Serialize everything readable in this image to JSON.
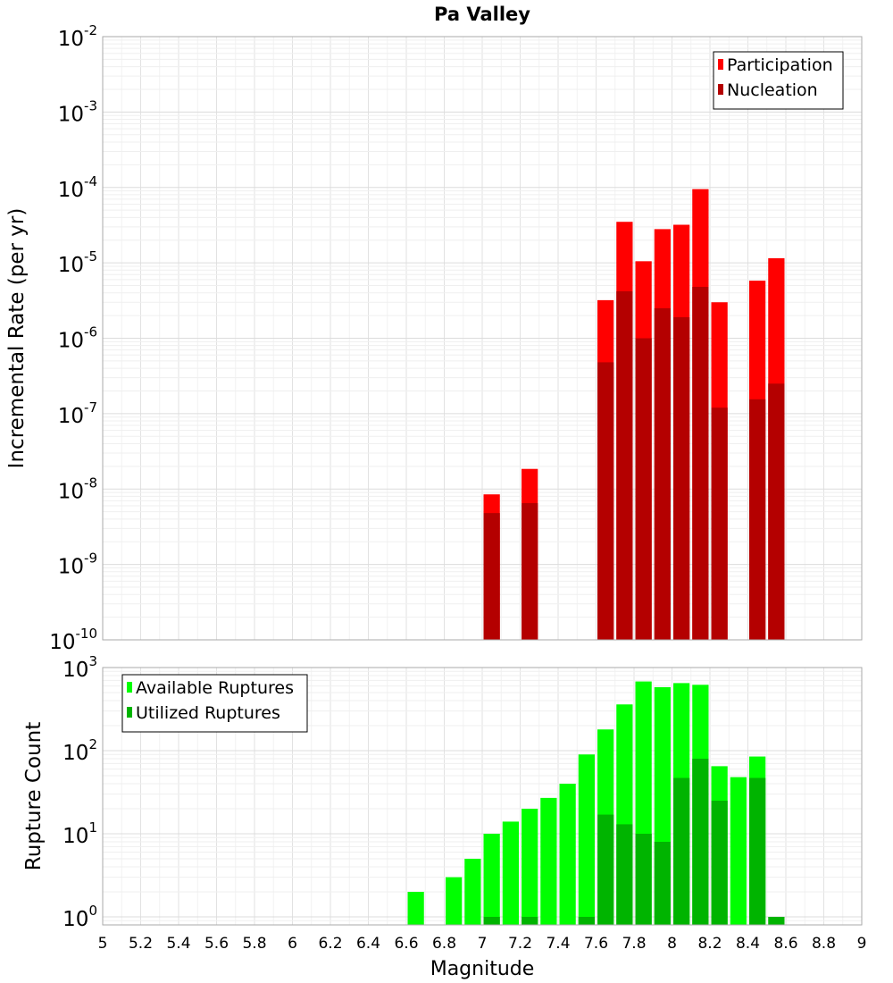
{
  "chart_data": [
    {
      "type": "bar",
      "title": "Pa Valley",
      "xlabel": "",
      "ylabel": "Incremental Rate (per yr)",
      "yscale": "log",
      "ylim": [
        1e-10,
        0.01
      ],
      "xlim": [
        5,
        9
      ],
      "grid": true,
      "legend_position": "top-right",
      "y_ticks": [
        {
          "base": "10",
          "exp": "-10"
        },
        {
          "base": "10",
          "exp": "-9"
        },
        {
          "base": "10",
          "exp": "-8"
        },
        {
          "base": "10",
          "exp": "-7"
        },
        {
          "base": "10",
          "exp": "-6"
        },
        {
          "base": "10",
          "exp": "-5"
        },
        {
          "base": "10",
          "exp": "-4"
        },
        {
          "base": "10",
          "exp": "-3"
        },
        {
          "base": "10",
          "exp": "-2"
        }
      ],
      "series": [
        {
          "name": "Participation",
          "color": "#ff0000",
          "points": [
            {
              "x": 7.05,
              "y": 8.5e-09
            },
            {
              "x": 7.25,
              "y": 1.85e-08
            },
            {
              "x": 7.65,
              "y": 3.2e-06
            },
            {
              "x": 7.75,
              "y": 3.5e-05
            },
            {
              "x": 7.85,
              "y": 1.05e-05
            },
            {
              "x": 7.95,
              "y": 2.8e-05
            },
            {
              "x": 8.05,
              "y": 3.2e-05
            },
            {
              "x": 8.15,
              "y": 9.5e-05
            },
            {
              "x": 8.25,
              "y": 3e-06
            },
            {
              "x": 8.45,
              "y": 5.8e-06
            },
            {
              "x": 8.55,
              "y": 1.15e-05
            }
          ]
        },
        {
          "name": "Nucleation",
          "color": "#b40000",
          "points": [
            {
              "x": 7.05,
              "y": 4.8e-09
            },
            {
              "x": 7.25,
              "y": 6.5e-09
            },
            {
              "x": 7.65,
              "y": 4.8e-07
            },
            {
              "x": 7.75,
              "y": 4.2e-06
            },
            {
              "x": 7.85,
              "y": 1e-06
            },
            {
              "x": 7.95,
              "y": 2.5e-06
            },
            {
              "x": 8.05,
              "y": 1.9e-06
            },
            {
              "x": 8.15,
              "y": 4.8e-06
            },
            {
              "x": 8.25,
              "y": 1.2e-07
            },
            {
              "x": 8.45,
              "y": 1.55e-07
            },
            {
              "x": 8.55,
              "y": 2.5e-07
            }
          ]
        }
      ]
    },
    {
      "type": "bar",
      "title": "",
      "xlabel": "Magnitude",
      "ylabel": "Rupture Count",
      "yscale": "log",
      "ylim": [
        0.8,
        1000
      ],
      "xlim": [
        5,
        9
      ],
      "grid": true,
      "legend_position": "top-left",
      "x_ticks": [
        "5",
        "5.2",
        "5.4",
        "5.6",
        "5.8",
        "6",
        "6.2",
        "6.4",
        "6.6",
        "6.8",
        "7",
        "7.2",
        "7.4",
        "7.6",
        "7.8",
        "8",
        "8.2",
        "8.4",
        "8.6",
        "8.8",
        "9"
      ],
      "y_ticks": [
        {
          "base": "10",
          "exp": "0"
        },
        {
          "base": "10",
          "exp": "1"
        },
        {
          "base": "10",
          "exp": "2"
        },
        {
          "base": "10",
          "exp": "3"
        }
      ],
      "series": [
        {
          "name": "Available Ruptures",
          "color": "#00ff00",
          "points": [
            {
              "x": 6.65,
              "y": 2
            },
            {
              "x": 6.85,
              "y": 3
            },
            {
              "x": 6.95,
              "y": 5
            },
            {
              "x": 7.05,
              "y": 10
            },
            {
              "x": 7.15,
              "y": 14
            },
            {
              "x": 7.25,
              "y": 20
            },
            {
              "x": 7.35,
              "y": 27
            },
            {
              "x": 7.45,
              "y": 40
            },
            {
              "x": 7.55,
              "y": 90
            },
            {
              "x": 7.65,
              "y": 180
            },
            {
              "x": 7.75,
              "y": 360
            },
            {
              "x": 7.85,
              "y": 680
            },
            {
              "x": 7.95,
              "y": 580
            },
            {
              "x": 8.05,
              "y": 650
            },
            {
              "x": 8.15,
              "y": 620
            },
            {
              "x": 8.25,
              "y": 65
            },
            {
              "x": 8.35,
              "y": 48
            },
            {
              "x": 8.45,
              "y": 85
            }
          ]
        },
        {
          "name": "Utilized Ruptures",
          "color": "#00b400",
          "points": [
            {
              "x": 7.05,
              "y": 1
            },
            {
              "x": 7.25,
              "y": 1
            },
            {
              "x": 7.55,
              "y": 1
            },
            {
              "x": 7.65,
              "y": 17
            },
            {
              "x": 7.75,
              "y": 13
            },
            {
              "x": 7.85,
              "y": 10
            },
            {
              "x": 7.95,
              "y": 8
            },
            {
              "x": 8.05,
              "y": 47
            },
            {
              "x": 8.15,
              "y": 80
            },
            {
              "x": 8.25,
              "y": 25
            },
            {
              "x": 8.45,
              "y": 47
            },
            {
              "x": 8.55,
              "y": 1
            }
          ]
        }
      ]
    }
  ]
}
